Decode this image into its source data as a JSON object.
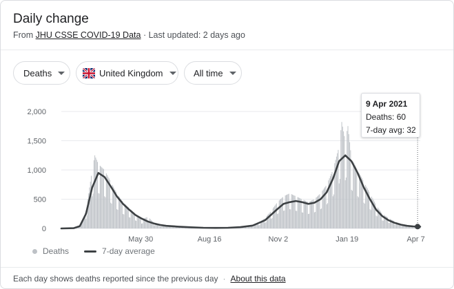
{
  "header": {
    "title": "Daily change",
    "source_prefix": "From ",
    "source_link": "JHU CSSE COVID-19 Data",
    "updated": " · Last updated: 2 days ago"
  },
  "filters": {
    "metric": "Deaths",
    "country": "United Kingdom",
    "range": "All time"
  },
  "tooltip": {
    "date": "9 Apr 2021",
    "deaths": "Deaths: 60",
    "avg": "7-day avg: 32"
  },
  "legend": {
    "bars": "Deaths",
    "line": "7-day average"
  },
  "footer": {
    "note": "Each day shows deaths reported since the previous day",
    "separator": "·",
    "link": "About this data"
  },
  "colors": {
    "bars": "#bdc1c6",
    "line": "#3c4043",
    "grid": "#e8eaed",
    "axis_text": "#5f6368"
  },
  "icons": {
    "flag": "uk-flag-icon",
    "dropdown": "dropdown-caret-icon"
  },
  "chart_data": {
    "type": "bar",
    "title": "Daily change",
    "x_axis": "date",
    "x_range": [
      "2020-03-01",
      "2021-04-12"
    ],
    "ylim": [
      0,
      2000
    ],
    "yticks": [
      0,
      500,
      1000,
      1500,
      2000
    ],
    "ytick_labels": [
      "0",
      "500",
      "1,000",
      "1,500",
      "2,000"
    ],
    "xtick_dates": [
      "2020-05-30",
      "2020-08-16",
      "2020-11-02",
      "2021-01-19",
      "2021-04-07"
    ],
    "xtick_labels": [
      "May 30",
      "Aug 16",
      "Nov 2",
      "Jan 19",
      "Apr 7"
    ],
    "grid": true,
    "legend_position": "bottom-left",
    "series": [
      {
        "name": "Deaths",
        "kind": "bar",
        "date": [
          "2020-03-01",
          "2020-03-15",
          "2020-03-22",
          "2020-03-29",
          "2020-04-05",
          "2020-04-08",
          "2020-04-12",
          "2020-04-19",
          "2020-04-26",
          "2020-05-03",
          "2020-05-10",
          "2020-05-17",
          "2020-05-24",
          "2020-05-31",
          "2020-06-07",
          "2020-06-14",
          "2020-06-21",
          "2020-06-28",
          "2020-07-12",
          "2020-07-26",
          "2020-08-09",
          "2020-08-23",
          "2020-09-06",
          "2020-09-20",
          "2020-10-04",
          "2020-10-11",
          "2020-10-18",
          "2020-10-25",
          "2020-11-01",
          "2020-11-08",
          "2020-11-15",
          "2020-11-22",
          "2020-11-29",
          "2020-12-06",
          "2020-12-13",
          "2020-12-20",
          "2020-12-27",
          "2021-01-03",
          "2021-01-10",
          "2021-01-13",
          "2021-01-17",
          "2021-01-20",
          "2021-01-24",
          "2021-01-31",
          "2021-02-07",
          "2021-02-14",
          "2021-02-21",
          "2021-02-28",
          "2021-03-07",
          "2021-03-14",
          "2021-03-21",
          "2021-03-28",
          "2021-04-04",
          "2021-04-09",
          "2021-04-12"
        ],
        "values": [
          0,
          0,
          50,
          300,
          1000,
          1250,
          1100,
          1000,
          800,
          600,
          450,
          350,
          250,
          150,
          200,
          100,
          70,
          50,
          40,
          25,
          15,
          10,
          12,
          20,
          50,
          100,
          180,
          300,
          450,
          550,
          600,
          550,
          500,
          450,
          500,
          600,
          750,
          1000,
          1400,
          1820,
          1500,
          1750,
          1200,
          1000,
          800,
          600,
          400,
          250,
          180,
          120,
          80,
          50,
          30,
          60,
          20
        ]
      },
      {
        "name": "7-day average",
        "kind": "line",
        "date": [
          "2020-03-01",
          "2020-03-15",
          "2020-03-22",
          "2020-03-29",
          "2020-04-05",
          "2020-04-12",
          "2020-04-19",
          "2020-04-26",
          "2020-05-03",
          "2020-05-10",
          "2020-05-17",
          "2020-05-24",
          "2020-05-31",
          "2020-06-07",
          "2020-06-14",
          "2020-06-21",
          "2020-06-28",
          "2020-07-12",
          "2020-07-26",
          "2020-08-09",
          "2020-08-23",
          "2020-09-06",
          "2020-09-20",
          "2020-10-04",
          "2020-10-18",
          "2020-11-01",
          "2020-11-08",
          "2020-11-15",
          "2020-11-22",
          "2020-11-29",
          "2020-12-06",
          "2020-12-13",
          "2020-12-20",
          "2020-12-27",
          "2021-01-03",
          "2021-01-10",
          "2021-01-17",
          "2021-01-24",
          "2021-01-31",
          "2021-02-07",
          "2021-02-14",
          "2021-02-21",
          "2021-02-28",
          "2021-03-07",
          "2021-03-14",
          "2021-03-21",
          "2021-03-28",
          "2021-04-04",
          "2021-04-09",
          "2021-04-12"
        ],
        "values": [
          0,
          5,
          40,
          250,
          700,
          950,
          880,
          720,
          550,
          420,
          320,
          230,
          170,
          120,
          85,
          60,
          45,
          30,
          20,
          12,
          10,
          12,
          22,
          50,
          140,
          330,
          420,
          450,
          470,
          450,
          420,
          440,
          500,
          620,
          850,
          1150,
          1250,
          1150,
          950,
          700,
          500,
          320,
          210,
          140,
          95,
          65,
          45,
          35,
          32,
          30
        ]
      }
    ],
    "highlight": {
      "date": "2021-04-09",
      "deaths": 60,
      "avg": 32
    }
  }
}
